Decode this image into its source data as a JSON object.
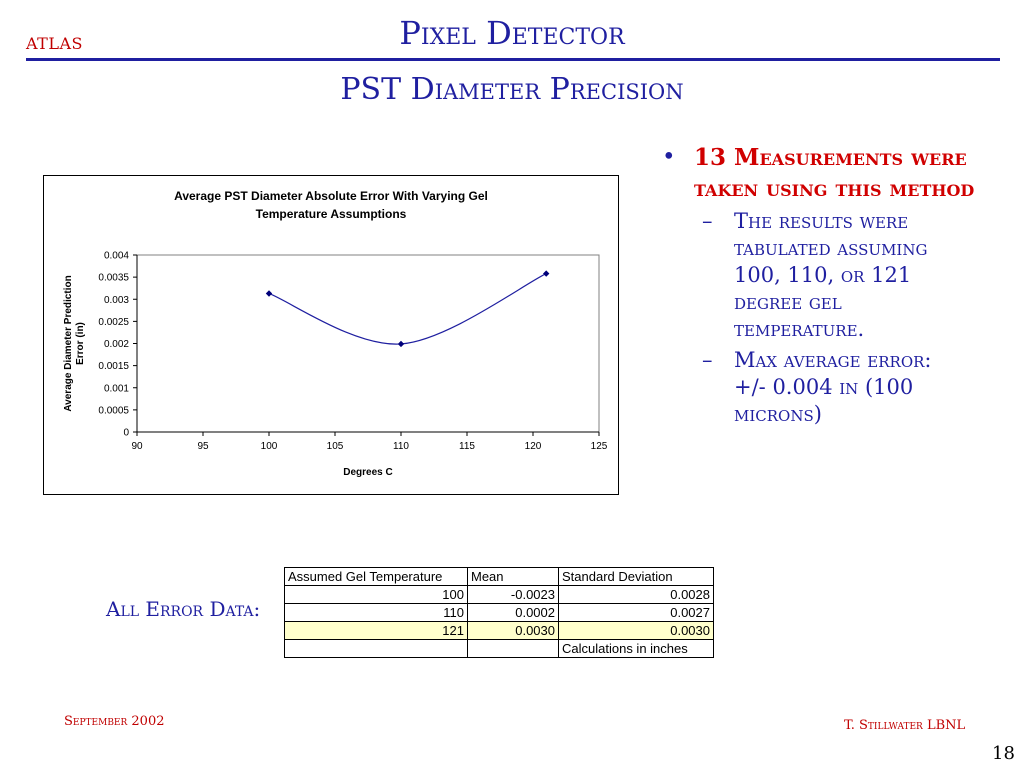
{
  "header": {
    "logo_text": "ATLAS",
    "title": "Pixel Detector",
    "subtitle": "PST Diameter Precision"
  },
  "bullets": {
    "main": "13 Measurements were taken using this method",
    "sub": [
      "The results were tabulated assuming 100, 110, or 121 degree gel temperature.",
      "Max average error: +/- 0.004 in (100 microns)"
    ]
  },
  "chart_data": {
    "type": "line",
    "title_lines": [
      "Average PST Diameter Absolute Error With Varying Gel",
      "Temperature Assumptions"
    ],
    "xlabel": "Degrees C",
    "ylabel_lines": [
      "Average Diameter Prediction",
      "Error (in)"
    ],
    "xlim": [
      90,
      125
    ],
    "ylim": [
      0,
      0.004
    ],
    "xticks": [
      90,
      95,
      100,
      105,
      110,
      115,
      120,
      125
    ],
    "yticks": [
      0,
      0.0005,
      0.001,
      0.0015,
      0.002,
      0.0025,
      0.003,
      0.0035,
      0.004
    ],
    "ytick_labels": [
      "0",
      "0.0005",
      "0.001",
      "0.0015",
      "0.002",
      "0.0025",
      "0.003",
      "0.0035",
      "0.004"
    ],
    "series": [
      {
        "x": [
          100,
          110,
          121
        ],
        "y": [
          0.00313,
          0.00199,
          0.00358
        ]
      }
    ],
    "grid": false,
    "line_color": "#1f1fa0",
    "marker_color": "#00007a"
  },
  "error_data": {
    "label": "All Error Data:",
    "headers": [
      "Assumed Gel Temperature",
      "Mean",
      "Standard Deviation"
    ],
    "rows": [
      [
        "100",
        "-0.0023",
        "0.0028"
      ],
      [
        "110",
        "0.0002",
        "0.0027"
      ],
      [
        "121",
        "0.0030",
        "0.0030"
      ]
    ],
    "note": "Calculations in inches"
  },
  "footer": {
    "date": "September 2002",
    "author": "T. Stillwater LBNL",
    "page": "18"
  },
  "colors": {
    "title_blue": "#1f1fa0",
    "accent_red": "#c00000",
    "highlight_row": "#ffffcc"
  }
}
